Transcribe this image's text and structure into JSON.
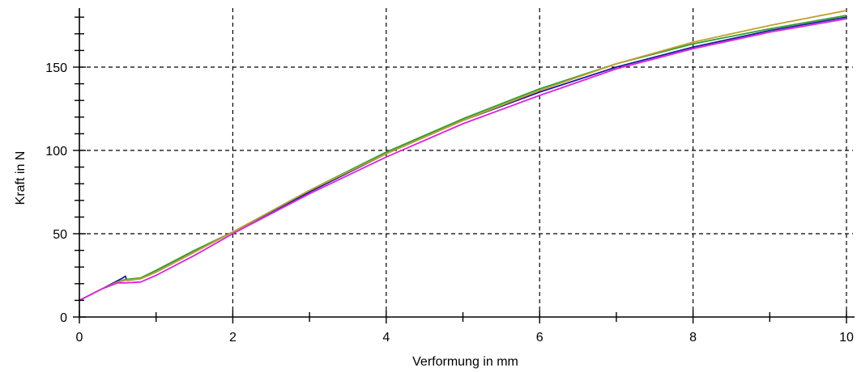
{
  "chart_data": {
    "type": "line",
    "xlabel": "Verformung in mm",
    "ylabel": "Kraft in N",
    "xlim": [
      0,
      10
    ],
    "ylim": [
      0,
      185
    ],
    "x_ticks": [
      0,
      2,
      4,
      6,
      8,
      10
    ],
    "x_tick_labels": [
      "0",
      "2",
      "4",
      "6",
      "8",
      "10"
    ],
    "y_ticks": [
      0,
      50,
      100,
      150
    ],
    "y_tick_labels": [
      "0",
      "50",
      "100",
      "150"
    ],
    "x_minor_step": 1,
    "y_minor_step": 10,
    "grid": true,
    "grid_style": "dashed",
    "legend": "none",
    "series": [
      {
        "color": "#1a1aa0",
        "x": [
          0,
          0.3,
          0.55,
          0.6,
          0.62,
          0.8,
          1,
          1.5,
          2,
          3,
          4,
          5,
          6,
          7,
          8,
          9,
          10
        ],
        "y": [
          10,
          17,
          23,
          24.5,
          22,
          23,
          27,
          39,
          51,
          75,
          98,
          118,
          135,
          150,
          162,
          172,
          180
        ]
      },
      {
        "color": "#2ca02c",
        "x": [
          0,
          0.3,
          0.5,
          0.6,
          0.8,
          1,
          1.5,
          2,
          3,
          4,
          5,
          6,
          7,
          8,
          9,
          10
        ],
        "y": [
          10,
          17,
          21,
          22.5,
          23.5,
          28,
          40,
          51,
          76,
          99,
          119,
          137,
          152,
          164,
          173,
          181
        ]
      },
      {
        "color": "#c0a030",
        "x": [
          0,
          0.3,
          0.5,
          0.6,
          0.8,
          1,
          1.5,
          2,
          3,
          4,
          5,
          6,
          7,
          8,
          9,
          10
        ],
        "y": [
          10,
          17,
          21,
          22,
          23,
          27,
          39,
          51,
          76,
          98,
          118,
          136,
          152,
          165,
          175,
          184
        ]
      },
      {
        "color": "#e020e0",
        "x": [
          0,
          0.3,
          0.5,
          0.6,
          0.8,
          1,
          1.5,
          2,
          3,
          4,
          5,
          6,
          7,
          8,
          9,
          10
        ],
        "y": [
          10,
          17,
          20.5,
          20.5,
          21,
          25,
          37,
          50,
          74,
          96,
          116,
          133,
          149,
          161,
          171,
          179
        ]
      }
    ]
  }
}
